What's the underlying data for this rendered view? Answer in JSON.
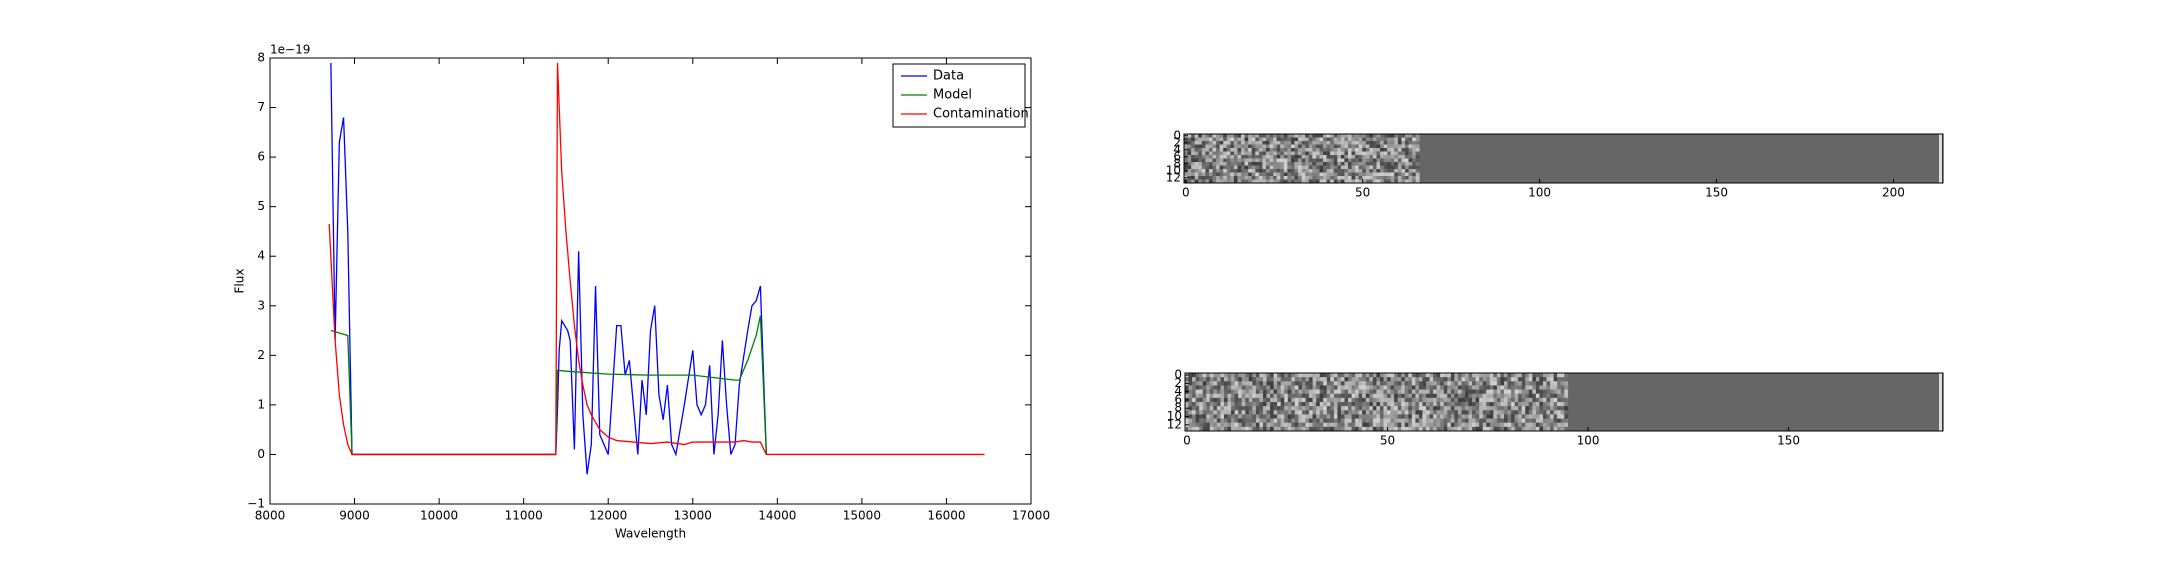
{
  "chart_data": [
    {
      "type": "line",
      "xlabel": "Wavelength",
      "ylabel": "Flux",
      "offset_text": "1e−19",
      "xlim": [
        8000,
        17000
      ],
      "xticks": [
        8000,
        9000,
        10000,
        11000,
        12000,
        13000,
        14000,
        15000,
        16000,
        17000
      ],
      "ylim": [
        -1,
        8
      ],
      "yticks": [
        {
          "value": -1,
          "label": "−1"
        },
        0,
        1,
        2,
        3,
        4,
        5,
        6,
        7,
        8
      ],
      "legend": "upper right",
      "series": [
        {
          "name": "Data",
          "color": "#0000ff",
          "x": [
            8720,
            8770,
            8820,
            8870,
            8920,
            8970,
            11380,
            11400,
            11420,
            11450,
            11520,
            11550,
            11600,
            11650,
            11700,
            11750,
            11800,
            11850,
            11900,
            12000,
            12100,
            12150,
            12200,
            12250,
            12350,
            12400,
            12450,
            12500,
            12550,
            12600,
            12650,
            12700,
            12750,
            12800,
            12900,
            13000,
            13050,
            13100,
            13150,
            13200,
            13250,
            13300,
            13350,
            13400,
            13450,
            13500,
            13550,
            13650,
            13700,
            13750,
            13800,
            13810,
            13870
          ],
          "values": [
            7.9,
            2.3,
            6.3,
            6.8,
            4.5,
            0,
            0,
            0.9,
            2.1,
            2.7,
            2.5,
            2.3,
            0.1,
            4.1,
            0.8,
            -0.4,
            0.2,
            3.4,
            0.4,
            0,
            2.6,
            2.6,
            1.6,
            1.9,
            0,
            1.5,
            0.8,
            2.5,
            3.0,
            1.2,
            0.7,
            1.4,
            0.2,
            0,
            1.0,
            2.1,
            1.0,
            0.8,
            1.0,
            1.8,
            0,
            0.8,
            2.3,
            1.0,
            0,
            0.2,
            1.4,
            2.5,
            3.0,
            3.1,
            3.4,
            2.9,
            0
          ]
        },
        {
          "name": "Model",
          "color": "#008000",
          "x": [
            8720,
            8920,
            8970,
            11380,
            11400,
            11500,
            12000,
            12500,
            13000,
            13500,
            13550,
            13650,
            13750,
            13800,
            13870
          ],
          "values": [
            2.5,
            2.4,
            0,
            0,
            1.7,
            1.68,
            1.62,
            1.6,
            1.6,
            1.5,
            1.5,
            1.9,
            2.4,
            2.8,
            0
          ]
        },
        {
          "name": "Contamination",
          "color": "#ff0000",
          "x": [
            8700,
            8770,
            8820,
            8870,
            8920,
            8970,
            11380,
            11400,
            11450,
            11500,
            11550,
            11600,
            11650,
            11700,
            11750,
            11800,
            11900,
            12000,
            12100,
            12300,
            12500,
            12700,
            12900,
            13000,
            13500,
            13600,
            13700,
            13800,
            13870,
            16450
          ],
          "values": [
            4.65,
            2.3,
            1.2,
            0.6,
            0.2,
            0,
            0,
            7.9,
            5.7,
            4.5,
            3.5,
            2.6,
            1.9,
            1.4,
            1.0,
            0.8,
            0.5,
            0.35,
            0.28,
            0.25,
            0.22,
            0.25,
            0.2,
            0.25,
            0.25,
            0.28,
            0.25,
            0.25,
            0,
            0
          ]
        }
      ]
    },
    {
      "type": "image",
      "xlim": [
        -0.5,
        214
      ],
      "xticks": [
        0,
        50,
        100,
        150,
        200
      ],
      "ylim": [
        13.5,
        -0.5
      ],
      "yticks": [
        0,
        2,
        4,
        6,
        8,
        10,
        12
      ]
    },
    {
      "type": "image",
      "xlim": [
        -0.5,
        188.5
      ],
      "xticks": [
        0,
        50,
        100,
        150
      ],
      "ylim": [
        13.5,
        -0.5
      ],
      "yticks": [
        0,
        2,
        4,
        6,
        8,
        10,
        12
      ]
    }
  ]
}
